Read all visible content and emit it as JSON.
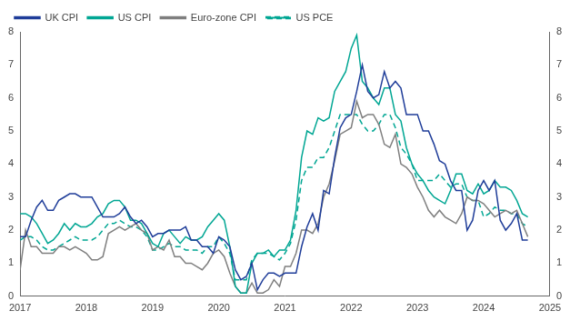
{
  "chart_data": {
    "type": "line",
    "x": [
      2017.0,
      2017.083,
      2017.167,
      2017.25,
      2017.333,
      2017.417,
      2017.5,
      2017.583,
      2017.667,
      2017.75,
      2017.833,
      2017.917,
      2018.0,
      2018.083,
      2018.167,
      2018.25,
      2018.333,
      2018.417,
      2018.5,
      2018.583,
      2018.667,
      2018.75,
      2018.833,
      2018.917,
      2019.0,
      2019.083,
      2019.167,
      2019.25,
      2019.333,
      2019.417,
      2019.5,
      2019.583,
      2019.667,
      2019.75,
      2019.833,
      2019.917,
      2020.0,
      2020.083,
      2020.167,
      2020.25,
      2020.333,
      2020.417,
      2020.5,
      2020.583,
      2020.667,
      2020.75,
      2020.833,
      2020.917,
      2021.0,
      2021.083,
      2021.167,
      2021.25,
      2021.333,
      2021.417,
      2021.5,
      2021.583,
      2021.667,
      2021.75,
      2021.833,
      2021.917,
      2022.0,
      2022.083,
      2022.167,
      2022.25,
      2022.333,
      2022.417,
      2022.5,
      2022.583,
      2022.667,
      2022.75,
      2022.833,
      2022.917,
      2023.0,
      2023.083,
      2023.167,
      2023.25,
      2023.333,
      2023.417,
      2023.5,
      2023.583,
      2023.667,
      2023.75,
      2023.833,
      2023.917,
      2024.0,
      2024.083,
      2024.167,
      2024.25,
      2024.333,
      2024.417,
      2024.5,
      2024.583,
      2024.667
    ],
    "series": [
      {
        "name": "UK CPI",
        "color": "#1f3d99",
        "line_style": "solid",
        "values": [
          1.8,
          1.8,
          2.3,
          2.7,
          2.9,
          2.6,
          2.6,
          2.9,
          3.0,
          3.1,
          3.1,
          3.0,
          3.0,
          3.0,
          2.7,
          2.4,
          2.4,
          2.4,
          2.5,
          2.7,
          2.4,
          2.2,
          2.3,
          2.1,
          1.8,
          1.9,
          1.9,
          2.0,
          2.0,
          2.0,
          2.1,
          1.7,
          1.7,
          1.5,
          1.5,
          1.3,
          1.8,
          1.7,
          1.5,
          0.8,
          0.5,
          0.6,
          1.0,
          0.2,
          0.5,
          0.7,
          0.7,
          0.6,
          0.7,
          0.7,
          0.7,
          1.5,
          2.1,
          2.5,
          2.0,
          3.2,
          3.1,
          4.2,
          5.1,
          5.4,
          5.5,
          6.2,
          7.0,
          6.2,
          6.0,
          6.1,
          6.8,
          6.3,
          6.5,
          6.3,
          5.5,
          5.5,
          5.5,
          5.0,
          5.0,
          4.6,
          4.1,
          4.0,
          3.5,
          3.2,
          3.2,
          2.0,
          2.3,
          3.2,
          3.5,
          3.2,
          3.5,
          2.3,
          2.0,
          2.2,
          2.5,
          1.7,
          1.7
        ]
      },
      {
        "name": "US CPI",
        "color": "#00a693",
        "line_style": "solid",
        "values": [
          2.5,
          2.5,
          2.4,
          2.2,
          1.9,
          1.6,
          1.7,
          1.9,
          2.2,
          2.0,
          2.2,
          2.1,
          2.1,
          2.2,
          2.4,
          2.5,
          2.8,
          2.9,
          2.9,
          2.7,
          2.3,
          2.3,
          2.2,
          1.9,
          1.6,
          1.5,
          1.9,
          2.0,
          1.8,
          1.6,
          1.8,
          1.7,
          1.7,
          1.8,
          2.1,
          2.3,
          2.5,
          2.3,
          1.5,
          0.3,
          0.1,
          0.1,
          1.0,
          1.3,
          1.3,
          1.4,
          1.2,
          1.4,
          1.4,
          1.7,
          2.6,
          4.2,
          5.0,
          4.9,
          5.4,
          5.3,
          5.4,
          6.2,
          6.5,
          6.8,
          7.5,
          7.9,
          6.5,
          6.3,
          6.0,
          5.8,
          6.3,
          6.3,
          5.5,
          5.3,
          4.5,
          4.0,
          3.7,
          3.5,
          3.2,
          3.0,
          2.9,
          2.8,
          3.2,
          3.7,
          3.7,
          3.2,
          3.1,
          3.4,
          3.1,
          3.2,
          3.5,
          3.3,
          3.3,
          3.2,
          2.9,
          2.5,
          2.4
        ]
      },
      {
        "name": "Euro-zone CPI",
        "color": "#7f7f7f",
        "line_style": "solid",
        "values": [
          0.8,
          2.0,
          1.5,
          1.5,
          1.3,
          1.3,
          1.3,
          1.5,
          1.5,
          1.4,
          1.5,
          1.4,
          1.3,
          1.1,
          1.1,
          1.2,
          1.9,
          2.0,
          2.1,
          2.0,
          2.1,
          2.2,
          2.0,
          1.9,
          1.4,
          1.5,
          1.4,
          1.7,
          1.2,
          1.2,
          1.0,
          1.0,
          0.9,
          0.8,
          1.0,
          1.3,
          1.4,
          1.2,
          0.7,
          0.3,
          0.1,
          0.1,
          0.4,
          0.1,
          0.1,
          0.2,
          0.5,
          0.3,
          0.9,
          0.9,
          1.3,
          2.0,
          2.0,
          1.9,
          2.2,
          3.0,
          3.4,
          4.1,
          4.9,
          5.0,
          5.1,
          5.9,
          5.4,
          5.5,
          5.5,
          5.2,
          4.6,
          4.5,
          4.9,
          4.0,
          3.9,
          3.7,
          3.3,
          3.0,
          2.6,
          2.4,
          2.6,
          2.4,
          2.3,
          2.2,
          2.5,
          3.0,
          2.9,
          2.9,
          2.8,
          2.6,
          2.4,
          2.5,
          2.6,
          2.5,
          2.6,
          2.2,
          1.8
        ]
      },
      {
        "name": "US PCE",
        "color": "#00a693",
        "line_style": "dashed",
        "values": [
          1.7,
          1.8,
          1.8,
          1.7,
          1.5,
          1.4,
          1.4,
          1.5,
          1.6,
          1.7,
          1.8,
          1.7,
          1.7,
          1.7,
          1.8,
          2.0,
          2.2,
          2.2,
          2.3,
          2.2,
          2.1,
          2.1,
          2.0,
          1.8,
          1.4,
          1.4,
          1.5,
          1.6,
          1.5,
          1.5,
          1.4,
          1.4,
          1.4,
          1.3,
          1.5,
          1.5,
          1.8,
          1.6,
          1.3,
          0.5,
          0.5,
          0.5,
          1.1,
          1.3,
          1.3,
          1.3,
          1.2,
          1.1,
          1.3,
          1.6,
          2.3,
          3.5,
          3.9,
          3.9,
          4.2,
          4.2,
          4.5,
          5.0,
          5.5,
          5.5,
          5.5,
          5.5,
          5.2,
          5.0,
          5.0,
          5.2,
          5.5,
          5.5,
          5.1,
          4.5,
          4.3,
          4.0,
          3.5,
          3.5,
          3.5,
          3.5,
          3.7,
          3.5,
          3.3,
          3.4,
          3.4,
          3.0,
          2.9,
          2.9,
          2.4,
          2.5,
          2.7,
          2.6,
          2.6,
          2.5,
          2.5,
          2.2,
          2.1
        ]
      }
    ],
    "xlim": [
      2017,
      2025
    ],
    "xticks": [
      2017,
      2018,
      2019,
      2020,
      2021,
      2022,
      2023,
      2024,
      2025
    ],
    "ylim": [
      0,
      8
    ],
    "yticks": [
      0,
      1,
      2,
      3,
      4,
      5,
      6,
      7,
      8
    ],
    "y2lim": [
      0,
      8
    ],
    "y2ticks": [
      0,
      1,
      2,
      3,
      4,
      5,
      6,
      7,
      8
    ],
    "grid": false,
    "legend": "upper left"
  }
}
